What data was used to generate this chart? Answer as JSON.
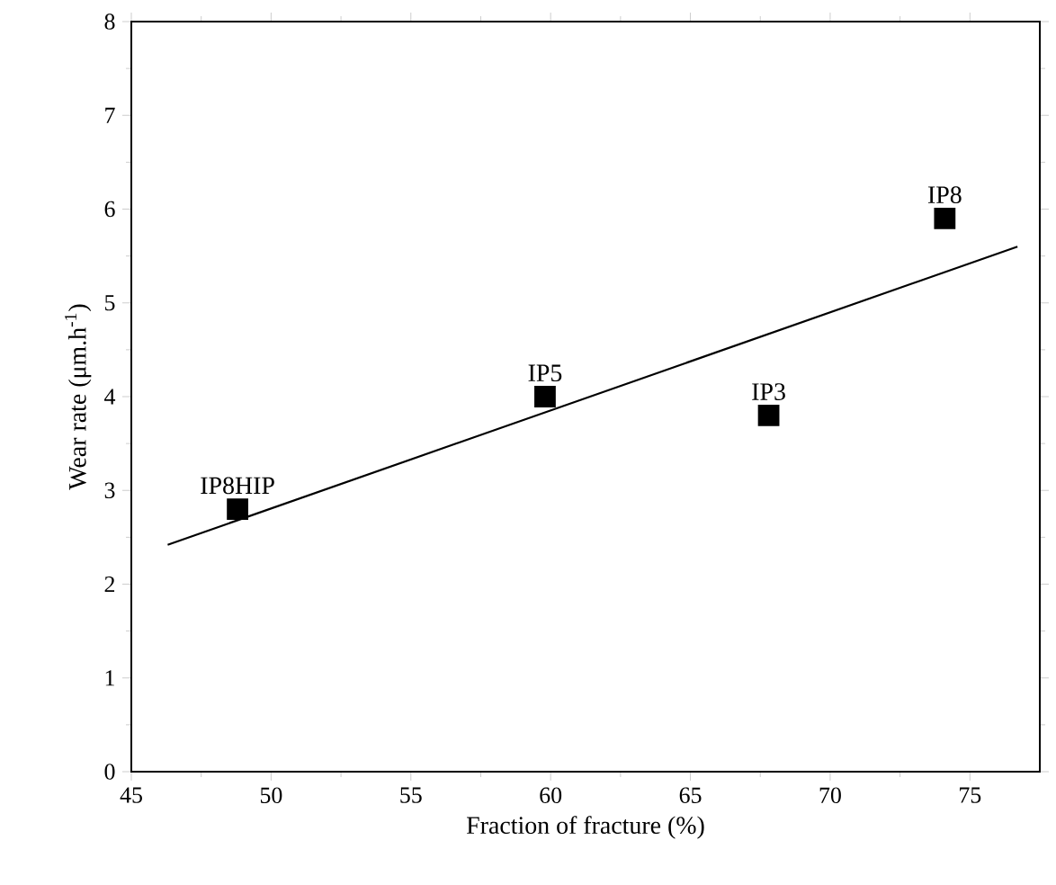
{
  "chart_data": {
    "type": "scatter",
    "xlabel": "Fraction of fracture (%)",
    "ylabel": "Wear rate (μm.h$^{-1}$)",
    "xlim": [
      45,
      77.5
    ],
    "xticks": [
      45,
      50,
      55,
      60,
      65,
      70,
      75
    ],
    "ylim": [
      0,
      8
    ],
    "yticks": [
      0,
      1,
      2,
      3,
      4,
      5,
      6,
      7,
      8
    ],
    "series": [
      {
        "color": "#000000",
        "marker": "square",
        "x": [
          48.8,
          59.8,
          67.8,
          74.1
        ],
        "values": [
          2.8,
          4.0,
          3.8,
          5.9
        ]
      },
      {
        "type": "line",
        "color": "#000000",
        "marker": "none",
        "x": [
          46.3,
          76.7
        ],
        "values": [
          2.42,
          5.6
        ]
      }
    ],
    "annotations": [
      {
        "text": "IP8HIP",
        "x": 48.8,
        "y": 2.8
      },
      {
        "text": "IP5",
        "x": 59.8,
        "y": 4.0
      },
      {
        "text": "IP3",
        "x": 67.8,
        "y": 3.8
      },
      {
        "text": "IP8",
        "x": 74.1,
        "y": 5.9
      }
    ]
  }
}
